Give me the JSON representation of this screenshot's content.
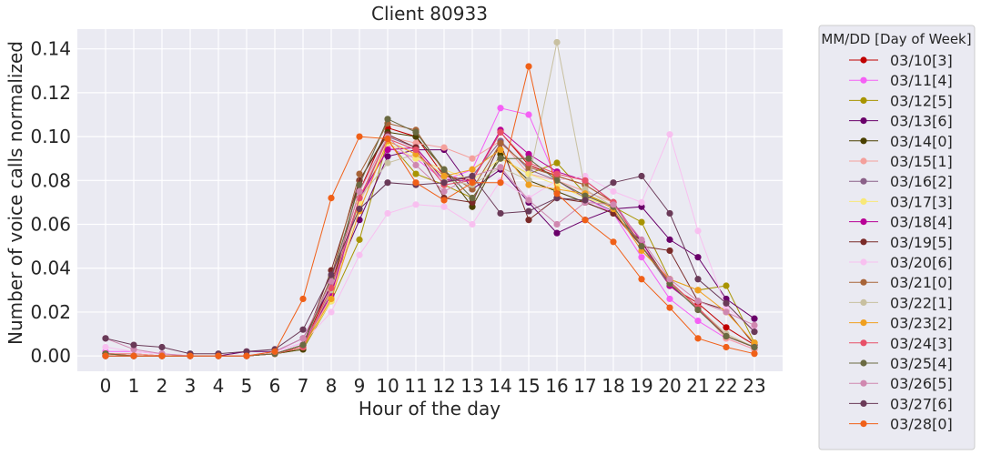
{
  "chart_data": {
    "type": "line",
    "title": "Client 80933",
    "xlabel": "Hour of the day",
    "ylabel": "Number of voice calls normalized",
    "x": [
      0,
      1,
      2,
      3,
      4,
      5,
      6,
      7,
      8,
      9,
      10,
      11,
      12,
      13,
      14,
      15,
      16,
      17,
      18,
      19,
      20,
      21,
      22,
      23
    ],
    "xlim": [
      -1,
      24
    ],
    "ylim": [
      -0.007,
      0.149
    ],
    "yticks": [
      0.0,
      0.02,
      0.04,
      0.06,
      0.08,
      0.1,
      0.12,
      0.14
    ],
    "ytick_labels": [
      "0.00",
      "0.02",
      "0.04",
      "0.06",
      "0.08",
      "0.10",
      "0.12",
      "0.14"
    ],
    "grid": true,
    "legend": {
      "title": "MM/DD [Day of Week]",
      "placement": "outside-right"
    },
    "series": [
      {
        "name": "03/10[3]",
        "color": "#c00000",
        "values": [
          0.001,
          0.001,
          0.0,
          0.0,
          0.0,
          0.0,
          0.001,
          0.004,
          0.033,
          0.075,
          0.104,
          0.1,
          0.082,
          0.08,
          0.102,
          0.087,
          0.082,
          0.078,
          0.07,
          0.05,
          0.032,
          0.024,
          0.013,
          0.005
        ]
      },
      {
        "name": "03/11[4]",
        "color": "#f560f5",
        "values": [
          0.002,
          0.002,
          0.001,
          0.0,
          0.0,
          0.0,
          0.002,
          0.006,
          0.028,
          0.07,
          0.095,
          0.09,
          0.08,
          0.085,
          0.113,
          0.11,
          0.08,
          0.072,
          0.065,
          0.045,
          0.026,
          0.016,
          0.008,
          0.003
        ]
      },
      {
        "name": "03/12[5]",
        "color": "#a89400",
        "values": [
          0.0,
          0.0,
          0.0,
          0.0,
          0.0,
          0.0,
          0.001,
          0.003,
          0.025,
          0.053,
          0.098,
          0.083,
          0.078,
          0.072,
          0.09,
          0.083,
          0.088,
          0.074,
          0.068,
          0.061,
          0.035,
          0.03,
          0.032,
          0.006
        ]
      },
      {
        "name": "03/13[6]",
        "color": "#6a006a",
        "values": [
          0.0,
          0.0,
          0.0,
          0.0,
          0.0,
          0.002,
          0.002,
          0.008,
          0.032,
          0.062,
          0.091,
          0.094,
          0.094,
          0.076,
          0.085,
          0.07,
          0.056,
          0.062,
          0.067,
          0.068,
          0.053,
          0.045,
          0.026,
          0.017
        ]
      },
      {
        "name": "03/14[0]",
        "color": "#4a4000",
        "values": [
          0.0,
          0.0,
          0.0,
          0.0,
          0.0,
          0.0,
          0.001,
          0.003,
          0.03,
          0.08,
          0.102,
          0.1,
          0.085,
          0.068,
          0.092,
          0.08,
          0.075,
          0.07,
          0.065,
          0.052,
          0.033,
          0.022,
          0.009,
          0.004
        ]
      },
      {
        "name": "03/15[1]",
        "color": "#f4a09c",
        "values": [
          0.001,
          0.001,
          0.0,
          0.0,
          0.0,
          0.0,
          0.001,
          0.005,
          0.027,
          0.072,
          0.1,
          0.097,
          0.095,
          0.09,
          0.098,
          0.083,
          0.08,
          0.075,
          0.07,
          0.05,
          0.034,
          0.022,
          0.008,
          0.003
        ]
      },
      {
        "name": "03/16[2]",
        "color": "#8a6088",
        "values": [
          0.0,
          0.0,
          0.0,
          0.0,
          0.0,
          0.0,
          0.001,
          0.004,
          0.031,
          0.07,
          0.1,
          0.095,
          0.08,
          0.082,
          0.098,
          0.085,
          0.08,
          0.072,
          0.066,
          0.05,
          0.032,
          0.022,
          0.009,
          0.004
        ]
      },
      {
        "name": "03/17[3]",
        "color": "#f8e878",
        "values": [
          0.0,
          0.0,
          0.0,
          0.0,
          0.0,
          0.0,
          0.001,
          0.004,
          0.025,
          0.07,
          0.097,
          0.09,
          0.085,
          0.08,
          0.09,
          0.083,
          0.078,
          0.072,
          0.068,
          0.05,
          0.033,
          0.022,
          0.01,
          0.004
        ]
      },
      {
        "name": "03/18[4]",
        "color": "#b80096",
        "values": [
          0.0,
          0.0,
          0.0,
          0.0,
          0.0,
          0.0,
          0.001,
          0.005,
          0.028,
          0.072,
          0.094,
          0.095,
          0.08,
          0.08,
          0.103,
          0.092,
          0.084,
          0.08,
          0.07,
          0.052,
          0.032,
          0.022,
          0.009,
          0.004
        ]
      },
      {
        "name": "03/19[5]",
        "color": "#7a2a28",
        "values": [
          0.0,
          0.0,
          0.0,
          0.0,
          0.0,
          0.0,
          0.001,
          0.005,
          0.039,
          0.08,
          0.101,
          0.095,
          0.072,
          0.07,
          0.097,
          0.062,
          0.072,
          0.07,
          0.065,
          0.05,
          0.048,
          0.025,
          0.021,
          0.005
        ]
      },
      {
        "name": "03/20[6]",
        "color": "#f8c0f0",
        "values": [
          0.004,
          0.002,
          0.001,
          0.0,
          0.0,
          0.0,
          0.002,
          0.006,
          0.02,
          0.046,
          0.065,
          0.069,
          0.068,
          0.06,
          0.08,
          0.072,
          0.08,
          0.082,
          0.075,
          0.07,
          0.101,
          0.057,
          0.022,
          0.012
        ]
      },
      {
        "name": "03/21[0]",
        "color": "#a86438",
        "values": [
          0.001,
          0.0,
          0.0,
          0.0,
          0.0,
          0.0,
          0.001,
          0.005,
          0.036,
          0.083,
          0.106,
          0.103,
          0.084,
          0.076,
          0.097,
          0.086,
          0.082,
          0.078,
          0.07,
          0.05,
          0.034,
          0.021,
          0.009,
          0.004
        ]
      },
      {
        "name": "03/22[1]",
        "color": "#c8c0a0",
        "values": [
          0.0,
          0.0,
          0.0,
          0.0,
          0.0,
          0.0,
          0.001,
          0.004,
          0.03,
          0.072,
          0.088,
          0.092,
          0.08,
          0.078,
          0.086,
          0.08,
          0.143,
          0.076,
          0.068,
          0.05,
          0.033,
          0.022,
          0.01,
          0.004
        ]
      },
      {
        "name": "03/23[2]",
        "color": "#f0a020",
        "values": [
          0.001,
          0.0,
          0.0,
          0.0,
          0.0,
          0.0,
          0.001,
          0.004,
          0.026,
          0.066,
          0.098,
          0.092,
          0.082,
          0.085,
          0.094,
          0.078,
          0.076,
          0.074,
          0.067,
          0.048,
          0.035,
          0.03,
          0.02,
          0.006
        ]
      },
      {
        "name": "03/24[3]",
        "color": "#e85068",
        "values": [
          0.001,
          0.0,
          0.0,
          0.0,
          0.0,
          0.0,
          0.001,
          0.004,
          0.031,
          0.072,
          0.099,
          0.094,
          0.078,
          0.08,
          0.102,
          0.088,
          0.083,
          0.08,
          0.07,
          0.05,
          0.034,
          0.022,
          0.009,
          0.004
        ]
      },
      {
        "name": "03/25[4]",
        "color": "#6a6a42",
        "values": [
          0.001,
          0.0,
          0.0,
          0.0,
          0.0,
          0.0,
          0.001,
          0.005,
          0.035,
          0.078,
          0.108,
          0.102,
          0.085,
          0.072,
          0.09,
          0.09,
          0.08,
          0.073,
          0.068,
          0.05,
          0.033,
          0.021,
          0.009,
          0.004
        ]
      },
      {
        "name": "03/26[5]",
        "color": "#d088b0",
        "values": [
          0.008,
          0.003,
          0.001,
          0.0,
          0.0,
          0.0,
          0.002,
          0.008,
          0.034,
          0.075,
          0.1,
          0.087,
          0.075,
          0.082,
          0.086,
          0.071,
          0.06,
          0.07,
          0.069,
          0.053,
          0.035,
          0.025,
          0.02,
          0.014
        ]
      },
      {
        "name": "03/27[6]",
        "color": "#6a3a58",
        "values": [
          0.008,
          0.005,
          0.004,
          0.001,
          0.001,
          0.002,
          0.003,
          0.012,
          0.037,
          0.067,
          0.079,
          0.078,
          0.079,
          0.082,
          0.065,
          0.066,
          0.072,
          0.071,
          0.079,
          0.082,
          0.065,
          0.035,
          0.024,
          0.011
        ]
      },
      {
        "name": "03/28[0]",
        "color": "#f06018",
        "values": [
          0.0,
          0.0,
          0.0,
          0.0,
          0.0,
          0.0,
          0.002,
          0.026,
          0.072,
          0.1,
          0.099,
          0.079,
          0.071,
          0.079,
          0.079,
          0.132,
          0.074,
          0.062,
          0.052,
          0.035,
          0.022,
          0.008,
          0.004,
          0.001
        ]
      }
    ]
  }
}
